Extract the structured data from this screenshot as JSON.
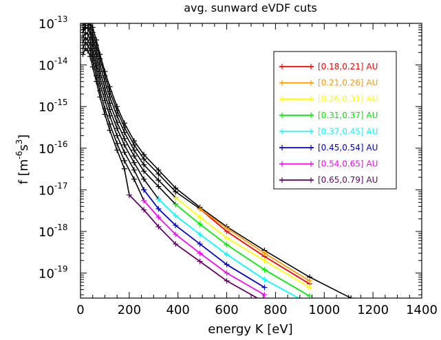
{
  "chart_data": {
    "type": "line",
    "title": "avg. sunward eVDF cuts",
    "xlabel": "energy K [eV]",
    "ylabel": {
      "base": "f [m",
      "exp1": "-6",
      "mid": "s",
      "exp2": "3",
      "end": "]"
    },
    "xlim": [
      0,
      1400
    ],
    "ylim": [
      2.5e-20,
      1e-13
    ],
    "yscale": "log",
    "x_ticks": [
      "0",
      "200",
      "400",
      "600",
      "800",
      "1000",
      "1200",
      "1400"
    ],
    "y_ticks": [
      {
        "base": "10",
        "exp": "-13"
      },
      {
        "base": "10",
        "exp": "-14"
      },
      {
        "base": "10",
        "exp": "-15"
      },
      {
        "base": "10",
        "exp": "-16"
      },
      {
        "base": "10",
        "exp": "-17"
      },
      {
        "base": "10",
        "exp": "-18"
      },
      {
        "base": "10",
        "exp": "-19"
      }
    ],
    "legend_position": "top-right",
    "grid": false,
    "series": [
      {
        "name": "[0.18,0.21] AU",
        "color": "#ff0000",
        "colored": {
          "x": [
            490,
            600,
            755,
            940
          ],
          "y": [
            3.5e-18,
            1e-18,
            2.5e-19,
            5.5e-20
          ]
        },
        "black": {
          "x": [
            10,
            20,
            30,
            40,
            50,
            65,
            80,
            100,
            120,
            150,
            180,
            220,
            260,
            320,
            390,
            490,
            600,
            755,
            940,
            1110
          ],
          "y": [
            1e-13,
            1e-13,
            1e-13,
            1e-13,
            8e-14,
            4e-14,
            1.8e-14,
            7e-15,
            3e-15,
            1e-15,
            4e-16,
            1.5e-16,
            7e-17,
            3e-17,
            1.1e-17,
            3.8e-18,
            1.3e-18,
            3.5e-19,
            8e-20,
            2.5e-20
          ]
        }
      },
      {
        "name": "[0.21,0.26] AU",
        "color": "#ff9900",
        "colored": {
          "x": [
            490,
            600,
            755,
            940
          ],
          "y": [
            3.5e-18,
            1.2e-18,
            3e-19,
            6.5e-20
          ]
        },
        "black": {
          "x": [
            10,
            20,
            30,
            40,
            50,
            65,
            80,
            100,
            120,
            150,
            180,
            220,
            260,
            320,
            390,
            490
          ],
          "y": [
            9e-14,
            1e-13,
            1e-13,
            9e-14,
            6e-14,
            3e-14,
            1.4e-14,
            5.5e-15,
            2.3e-15,
            8e-16,
            3.2e-16,
            1.2e-16,
            5.5e-17,
            2.4e-17,
            9e-18,
            3.5e-18
          ]
        }
      },
      {
        "name": "[0.26,0.31] AU",
        "color": "#ffff00",
        "colored": {
          "x": [
            390,
            490,
            600,
            755,
            940
          ],
          "y": [
            6.5e-18,
            2.2e-18,
            7e-19,
            2e-19,
            4.5e-20
          ]
        },
        "black": {
          "x": [
            10,
            20,
            30,
            40,
            50,
            65,
            80,
            100,
            120,
            150,
            180,
            220,
            260,
            320,
            390
          ],
          "y": [
            7e-14,
            9e-14,
            9e-14,
            7e-14,
            4.5e-14,
            2.2e-14,
            1e-14,
            4e-15,
            1.7e-15,
            6e-16,
            2.4e-16,
            9e-17,
            4e-17,
            1.7e-17,
            6.5e-18
          ]
        }
      },
      {
        "name": "[0.31,0.37] AU",
        "color": "#00ee00",
        "colored": {
          "x": [
            390,
            490,
            600,
            755,
            940
          ],
          "y": [
            4.5e-18,
            1.5e-18,
            4.8e-19,
            1.2e-19,
            2.8e-20
          ]
        },
        "black": {
          "x": [
            10,
            20,
            30,
            40,
            50,
            65,
            80,
            100,
            120,
            150,
            180,
            220,
            260,
            320,
            390
          ],
          "y": [
            6e-14,
            8e-14,
            7.5e-14,
            5.5e-14,
            3.5e-14,
            1.6e-14,
            7e-15,
            2.8e-15,
            1.2e-15,
            4.2e-16,
            1.7e-16,
            6.5e-17,
            2.8e-17,
            1.2e-17,
            4.5e-18
          ]
        }
      },
      {
        "name": "[0.37,0.45] AU",
        "color": "#00ffff",
        "colored": {
          "x": [
            320,
            390,
            490,
            600,
            755,
            940
          ],
          "y": [
            6e-18,
            2.4e-18,
            8.5e-19,
            2.8e-19,
            7e-20,
            1.8e-20
          ]
        },
        "black": {
          "x": [
            10,
            20,
            30,
            40,
            50,
            65,
            80,
            100,
            120,
            150,
            180,
            220,
            260,
            320
          ],
          "y": [
            4.5e-14,
            6e-14,
            5.5e-14,
            4e-14,
            2.5e-14,
            1.1e-14,
            5e-15,
            2e-15,
            8.5e-16,
            3e-16,
            1.2e-16,
            4.5e-17,
            1.8e-17,
            6e-18
          ]
        }
      },
      {
        "name": "[0.45,0.54] AU",
        "color": "#0000cc",
        "colored": {
          "x": [
            260,
            320,
            390,
            490,
            600,
            755
          ],
          "y": [
            1e-17,
            3.5e-18,
            1.4e-18,
            5e-19,
            1.6e-19,
            4.5e-20
          ]
        },
        "black": {
          "x": [
            10,
            20,
            30,
            40,
            50,
            65,
            80,
            100,
            120,
            150,
            180,
            220,
            260
          ],
          "y": [
            3.5e-14,
            4.5e-14,
            4e-14,
            3e-14,
            1.8e-14,
            8e-15,
            3.5e-15,
            1.4e-15,
            6e-16,
            2e-16,
            8e-17,
            3e-17,
            1e-17
          ]
        }
      },
      {
        "name": "[0.54,0.65] AU",
        "color": "#ff00ff",
        "colored": {
          "x": [
            260,
            320,
            390,
            490,
            600,
            755
          ],
          "y": [
            5.5e-18,
            2.2e-18,
            8.5e-19,
            3e-19,
            1e-19,
            3e-20
          ]
        },
        "black": {
          "x": [
            10,
            20,
            30,
            40,
            50,
            65,
            80,
            100,
            120,
            150,
            180,
            220,
            260
          ],
          "y": [
            2.5e-14,
            3.5e-14,
            3e-14,
            2.2e-14,
            1.3e-14,
            5.5e-15,
            2.4e-15,
            9e-16,
            3.8e-16,
            1.3e-16,
            5e-17,
            1.8e-17,
            5.5e-18
          ]
        }
      },
      {
        "name": "[0.65,0.79] AU",
        "color": "#660066",
        "colored": {
          "x": [
            200,
            260,
            320,
            390,
            490,
            600,
            755
          ],
          "y": [
            7.5e-18,
            3.3e-18,
            1.3e-18,
            5e-19,
            1.9e-19,
            6.5e-20,
            2e-20
          ]
        },
        "black": {
          "x": [
            10,
            20,
            30,
            40,
            50,
            65,
            80,
            100,
            120,
            150,
            180,
            200
          ],
          "y": [
            1.8e-14,
            2.5e-14,
            2.2e-14,
            1.6e-14,
            9e-15,
            4e-15,
            1.7e-15,
            6.5e-16,
            2.7e-16,
            9e-17,
            3.2e-17,
            7.5e-18
          ]
        }
      }
    ]
  }
}
